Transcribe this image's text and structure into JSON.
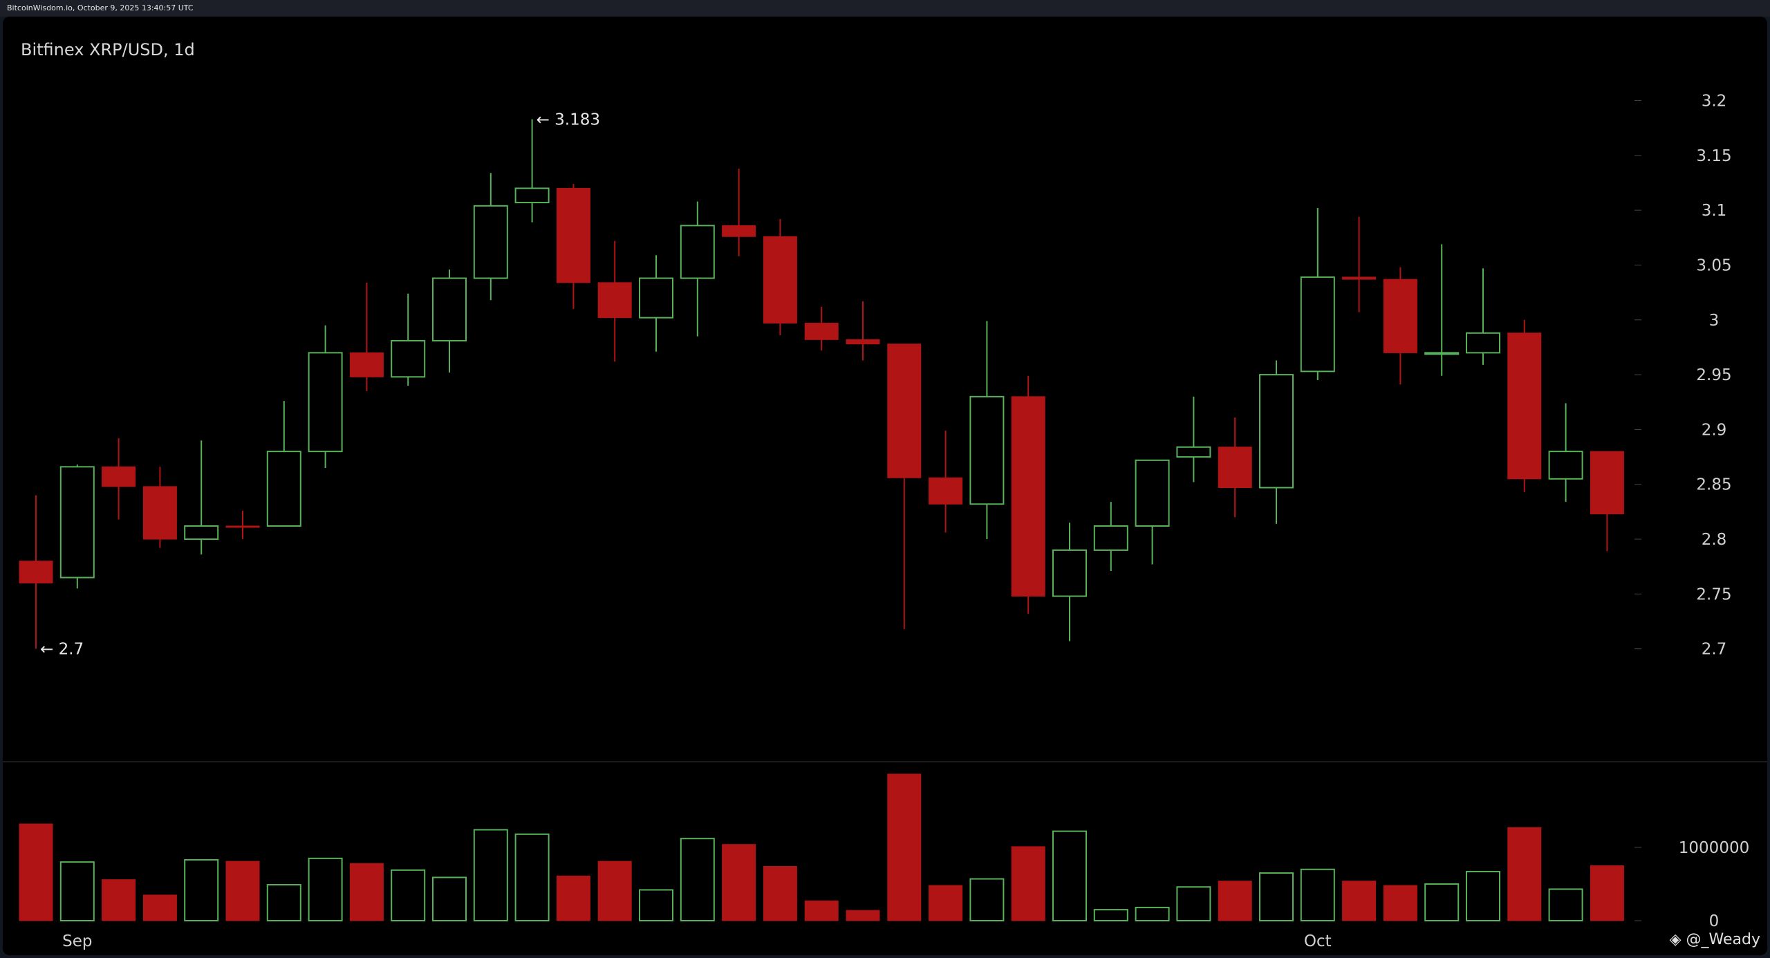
{
  "source_bar": "BitcoinWisdom.io, October 9, 2025 13:40:57 UTC",
  "title": "Bitfinex XRP/USD, 1d",
  "watermark": "@_Weady",
  "colors": {
    "up": "#58b25a",
    "down": "#b11414",
    "background": "#000000",
    "text": "#d0d0d0",
    "grid": "#444444"
  },
  "chart_data": {
    "type": "candlestick",
    "price_axis": {
      "ticks": [
        2.7,
        2.75,
        2.8,
        2.85,
        2.9,
        2.95,
        3,
        3.05,
        3.1,
        3.15,
        3.2
      ],
      "tick_labels": [
        "2.7",
        "2.75",
        "2.8",
        "2.85",
        "2.9",
        "2.95",
        "3",
        "3.05",
        "3.1",
        "3.15",
        "3.2"
      ],
      "range": [
        2.65,
        3.235
      ]
    },
    "volume_axis": {
      "ticks": [
        0,
        1000000
      ],
      "tick_labels": [
        "0",
        "1000000"
      ],
      "range": [
        0,
        1980000
      ]
    },
    "x_labels": [
      {
        "index": 1,
        "label": "Sep"
      },
      {
        "index": 31,
        "label": "Oct"
      }
    ],
    "annotations": [
      {
        "index": 12,
        "price": 3.183,
        "label": "← 3.183"
      },
      {
        "index": 0,
        "price": 2.7,
        "label": "← 2.7"
      }
    ],
    "candles": [
      {
        "o": 2.78,
        "h": 2.84,
        "l": 2.7,
        "c": 2.76,
        "v": 1320000
      },
      {
        "o": 2.765,
        "h": 2.868,
        "l": 2.755,
        "c": 2.866,
        "v": 800000
      },
      {
        "o": 2.866,
        "h": 2.892,
        "l": 2.818,
        "c": 2.848,
        "v": 560000
      },
      {
        "o": 2.848,
        "h": 2.866,
        "l": 2.792,
        "c": 2.8,
        "v": 350000
      },
      {
        "o": 2.8,
        "h": 2.89,
        "l": 2.786,
        "c": 2.812,
        "v": 830000
      },
      {
        "o": 2.812,
        "h": 2.826,
        "l": 2.8,
        "c": 2.811,
        "v": 810000
      },
      {
        "o": 2.812,
        "h": 2.926,
        "l": 2.812,
        "c": 2.88,
        "v": 490000
      },
      {
        "o": 2.88,
        "h": 2.995,
        "l": 2.865,
        "c": 2.97,
        "v": 850000
      },
      {
        "o": 2.97,
        "h": 3.034,
        "l": 2.935,
        "c": 2.948,
        "v": 780000
      },
      {
        "o": 2.948,
        "h": 3.024,
        "l": 2.94,
        "c": 2.981,
        "v": 690000
      },
      {
        "o": 2.981,
        "h": 3.046,
        "l": 2.952,
        "c": 3.038,
        "v": 590000
      },
      {
        "o": 3.038,
        "h": 3.134,
        "l": 3.018,
        "c": 3.104,
        "v": 1240000
      },
      {
        "o": 3.107,
        "h": 3.183,
        "l": 3.089,
        "c": 3.12,
        "v": 1180000
      },
      {
        "o": 3.12,
        "h": 3.124,
        "l": 3.01,
        "c": 3.034,
        "v": 610000
      },
      {
        "o": 3.034,
        "h": 3.072,
        "l": 2.962,
        "c": 3.002,
        "v": 810000
      },
      {
        "o": 3.002,
        "h": 3.059,
        "l": 2.971,
        "c": 3.038,
        "v": 420000
      },
      {
        "o": 3.038,
        "h": 3.108,
        "l": 2.985,
        "c": 3.086,
        "v": 1120000
      },
      {
        "o": 3.086,
        "h": 3.138,
        "l": 3.058,
        "c": 3.076,
        "v": 1040000
      },
      {
        "o": 3.076,
        "h": 3.092,
        "l": 2.986,
        "c": 2.997,
        "v": 740000
      },
      {
        "o": 2.997,
        "h": 3.012,
        "l": 2.972,
        "c": 2.982,
        "v": 270000
      },
      {
        "o": 2.982,
        "h": 3.017,
        "l": 2.963,
        "c": 2.978,
        "v": 140000
      },
      {
        "o": 2.978,
        "h": 2.978,
        "l": 2.718,
        "c": 2.856,
        "v": 2000000
      },
      {
        "o": 2.856,
        "h": 2.899,
        "l": 2.806,
        "c": 2.832,
        "v": 480000
      },
      {
        "o": 2.832,
        "h": 2.999,
        "l": 2.8,
        "c": 2.93,
        "v": 570000
      },
      {
        "o": 2.93,
        "h": 2.949,
        "l": 2.732,
        "c": 2.748,
        "v": 1010000
      },
      {
        "o": 2.748,
        "h": 2.815,
        "l": 2.707,
        "c": 2.79,
        "v": 1220000
      },
      {
        "o": 2.79,
        "h": 2.834,
        "l": 2.771,
        "c": 2.812,
        "v": 150000
      },
      {
        "o": 2.812,
        "h": 2.872,
        "l": 2.777,
        "c": 2.872,
        "v": 180000
      },
      {
        "o": 2.875,
        "h": 2.93,
        "l": 2.852,
        "c": 2.884,
        "v": 460000
      },
      {
        "o": 2.884,
        "h": 2.911,
        "l": 2.82,
        "c": 2.847,
        "v": 540000
      },
      {
        "o": 2.847,
        "h": 2.963,
        "l": 2.814,
        "c": 2.95,
        "v": 650000
      },
      {
        "o": 2.953,
        "h": 3.102,
        "l": 2.945,
        "c": 3.039,
        "v": 700000
      },
      {
        "o": 3.039,
        "h": 3.094,
        "l": 3.007,
        "c": 3.037,
        "v": 540000
      },
      {
        "o": 3.037,
        "h": 3.048,
        "l": 2.941,
        "c": 2.97,
        "v": 480000
      },
      {
        "o": 2.97,
        "h": 3.069,
        "l": 2.949,
        "c": 2.97,
        "v": 500000
      },
      {
        "o": 2.97,
        "h": 3.047,
        "l": 2.959,
        "c": 2.988,
        "v": 670000
      },
      {
        "o": 2.988,
        "h": 3.0,
        "l": 2.843,
        "c": 2.855,
        "v": 1270000
      },
      {
        "o": 2.855,
        "h": 2.924,
        "l": 2.834,
        "c": 2.88,
        "v": 430000
      },
      {
        "o": 2.88,
        "h": 2.88,
        "l": 2.789,
        "c": 2.823,
        "v": 750000
      }
    ]
  }
}
